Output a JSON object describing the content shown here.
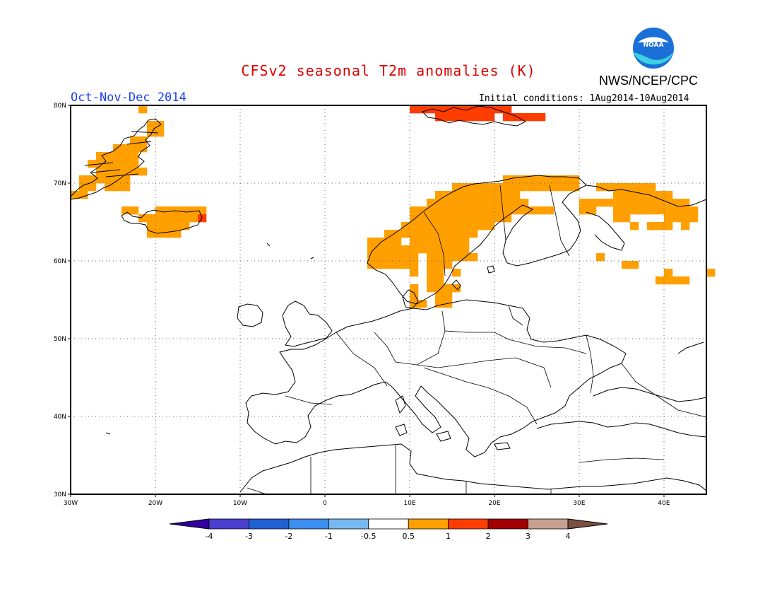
{
  "title": "CFSv2 seasonal T2m anomalies (K)",
  "organization": "NWS/NCEP/CPC",
  "logo": {
    "name": "noaa-logo",
    "text": "NOAA",
    "colors": {
      "sky": "#1a6fd8",
      "water": "#3fd0e0",
      "bird": "#ffffff"
    }
  },
  "season_label": "Oct-Nov-Dec 2014",
  "initial_conditions": "Initial conditions: 1Aug2014-10Aug2014",
  "map": {
    "projection": "lat-lon",
    "lon_range": [
      -30,
      45
    ],
    "lat_range": [
      30,
      80
    ],
    "grid": true,
    "lat_ticks": [
      "30N",
      "40N",
      "50N",
      "60N",
      "70N",
      "80N"
    ],
    "lon_ticks": [
      "30W",
      "20W",
      "10W",
      "0",
      "10E",
      "20E",
      "30E",
      "40E"
    ],
    "cell_size_deg": 1,
    "anomaly_regions": [
      {
        "region": "Svalbard",
        "bin": "1 to 2",
        "color": "#ff3d00",
        "cells": [
          [
            10,
            79
          ],
          [
            11,
            79
          ],
          [
            12,
            79
          ],
          [
            13,
            79
          ],
          [
            14,
            79
          ],
          [
            15,
            79
          ],
          [
            16,
            79
          ],
          [
            17,
            79
          ],
          [
            18,
            79
          ],
          [
            19,
            79
          ],
          [
            20,
            79
          ],
          [
            21,
            79
          ],
          [
            13,
            78
          ],
          [
            14,
            78
          ],
          [
            15,
            78
          ],
          [
            16,
            78
          ],
          [
            17,
            78
          ],
          [
            18,
            78
          ],
          [
            19,
            78
          ],
          [
            21,
            78
          ],
          [
            22,
            78
          ],
          [
            23,
            78
          ],
          [
            24,
            78
          ],
          [
            25,
            78
          ]
        ]
      },
      {
        "region": "Greenland east coast",
        "bin": "0.5 to 1",
        "color": "#ffa000",
        "cells": [
          [
            -22,
            79
          ],
          [
            -21,
            77
          ],
          [
            -20,
            77
          ],
          [
            -21,
            76
          ],
          [
            -20,
            76
          ],
          [
            -23,
            75
          ],
          [
            -22,
            75
          ],
          [
            -25,
            74
          ],
          [
            -24,
            74
          ],
          [
            -23,
            74
          ],
          [
            -22,
            74
          ],
          [
            -27,
            73
          ],
          [
            -26,
            73
          ],
          [
            -25,
            73
          ],
          [
            -24,
            73
          ],
          [
            -23,
            73
          ],
          [
            -28,
            72
          ],
          [
            -27,
            72
          ],
          [
            -26,
            72
          ],
          [
            -25,
            72
          ],
          [
            -24,
            72
          ],
          [
            -23,
            72
          ],
          [
            -27,
            71
          ],
          [
            -26,
            71
          ],
          [
            -25,
            71
          ],
          [
            -24,
            71
          ],
          [
            -23,
            71
          ],
          [
            -22,
            71
          ],
          [
            -29,
            70
          ],
          [
            -28,
            70
          ],
          [
            -27,
            70
          ],
          [
            -26,
            70
          ],
          [
            -25,
            70
          ],
          [
            -24,
            70
          ],
          [
            -29,
            69
          ],
          [
            -28,
            69
          ],
          [
            -26,
            69
          ],
          [
            -25,
            69
          ],
          [
            -24,
            69
          ],
          [
            -30,
            68
          ],
          [
            -29,
            68
          ]
        ]
      },
      {
        "region": "Iceland",
        "bin": "0.5 to 1",
        "color": "#ffa000",
        "cells": [
          [
            -24,
            66
          ],
          [
            -23,
            66
          ],
          [
            -20,
            66
          ],
          [
            -19,
            66
          ],
          [
            -18,
            66
          ],
          [
            -17,
            66
          ],
          [
            -16,
            66
          ],
          [
            -15,
            66
          ],
          [
            -22,
            65
          ],
          [
            -21,
            65
          ],
          [
            -20,
            65
          ],
          [
            -19,
            65
          ],
          [
            -18,
            65
          ],
          [
            -17,
            65
          ],
          [
            -16,
            65
          ],
          [
            -21,
            64
          ],
          [
            -20,
            64
          ],
          [
            -19,
            64
          ],
          [
            -18,
            64
          ],
          [
            -17,
            64
          ],
          [
            -21,
            63
          ],
          [
            -20,
            63
          ],
          [
            -19,
            63
          ],
          [
            -18,
            63
          ]
        ]
      },
      {
        "region": "Iceland south-east",
        "bin": "1 to 2",
        "color": "#ff3d00",
        "cells": [
          [
            -15,
            65
          ]
        ]
      },
      {
        "region": "Scandinavia",
        "bin": "0.5 to 1",
        "color": "#ffa000",
        "cells": [
          [
            21,
            70
          ],
          [
            22,
            70
          ],
          [
            23,
            70
          ],
          [
            24,
            70
          ],
          [
            25,
            70
          ],
          [
            26,
            70
          ],
          [
            27,
            70
          ],
          [
            28,
            70
          ],
          [
            29,
            70
          ],
          [
            15,
            69
          ],
          [
            16,
            69
          ],
          [
            17,
            69
          ],
          [
            18,
            69
          ],
          [
            19,
            69
          ],
          [
            20,
            69
          ],
          [
            21,
            69
          ],
          [
            22,
            69
          ],
          [
            23,
            69
          ],
          [
            24,
            69
          ],
          [
            25,
            69
          ],
          [
            26,
            69
          ],
          [
            27,
            69
          ],
          [
            28,
            69
          ],
          [
            29,
            69
          ],
          [
            13,
            68
          ],
          [
            14,
            68
          ],
          [
            15,
            68
          ],
          [
            16,
            68
          ],
          [
            17,
            68
          ],
          [
            18,
            68
          ],
          [
            19,
            68
          ],
          [
            20,
            68
          ],
          [
            21,
            68
          ],
          [
            22,
            68
          ],
          [
            12,
            67
          ],
          [
            13,
            67
          ],
          [
            14,
            67
          ],
          [
            15,
            67
          ],
          [
            16,
            67
          ],
          [
            17,
            67
          ],
          [
            18,
            67
          ],
          [
            19,
            67
          ],
          [
            20,
            67
          ],
          [
            21,
            67
          ],
          [
            22,
            67
          ],
          [
            23,
            67
          ],
          [
            10,
            66
          ],
          [
            11,
            66
          ],
          [
            12,
            66
          ],
          [
            13,
            66
          ],
          [
            14,
            66
          ],
          [
            15,
            66
          ],
          [
            16,
            66
          ],
          [
            17,
            66
          ],
          [
            18,
            66
          ],
          [
            19,
            66
          ],
          [
            20,
            66
          ],
          [
            21,
            66
          ],
          [
            22,
            66
          ],
          [
            23,
            66
          ],
          [
            24,
            66
          ],
          [
            25,
            66
          ],
          [
            26,
            66
          ],
          [
            10,
            65
          ],
          [
            11,
            65
          ],
          [
            12,
            65
          ],
          [
            13,
            65
          ],
          [
            14,
            65
          ],
          [
            15,
            65
          ],
          [
            16,
            65
          ],
          [
            17,
            65
          ],
          [
            18,
            65
          ],
          [
            19,
            65
          ],
          [
            20,
            65
          ],
          [
            21,
            65
          ],
          [
            9,
            64
          ],
          [
            10,
            64
          ],
          [
            11,
            64
          ],
          [
            12,
            64
          ],
          [
            13,
            64
          ],
          [
            14,
            64
          ],
          [
            15,
            64
          ],
          [
            16,
            64
          ],
          [
            17,
            64
          ],
          [
            18,
            64
          ],
          [
            19,
            64
          ],
          [
            7,
            63
          ],
          [
            8,
            63
          ],
          [
            9,
            63
          ],
          [
            10,
            63
          ],
          [
            11,
            63
          ],
          [
            12,
            63
          ],
          [
            13,
            63
          ],
          [
            14,
            63
          ],
          [
            15,
            63
          ],
          [
            16,
            63
          ],
          [
            17,
            63
          ],
          [
            5,
            62
          ],
          [
            6,
            62
          ],
          [
            7,
            62
          ],
          [
            8,
            62
          ],
          [
            10,
            62
          ],
          [
            11,
            62
          ],
          [
            12,
            62
          ],
          [
            13,
            62
          ],
          [
            14,
            62
          ],
          [
            15,
            62
          ],
          [
            16,
            62
          ],
          [
            5,
            61
          ],
          [
            6,
            61
          ],
          [
            7,
            61
          ],
          [
            8,
            61
          ],
          [
            9,
            61
          ],
          [
            10,
            61
          ],
          [
            11,
            61
          ],
          [
            12,
            61
          ],
          [
            13,
            61
          ],
          [
            14,
            61
          ],
          [
            15,
            61
          ],
          [
            16,
            61
          ],
          [
            5,
            60
          ],
          [
            6,
            60
          ],
          [
            7,
            60
          ],
          [
            8,
            60
          ],
          [
            9,
            60
          ],
          [
            10,
            60
          ],
          [
            12,
            60
          ],
          [
            13,
            60
          ],
          [
            14,
            60
          ],
          [
            15,
            60
          ],
          [
            16,
            60
          ],
          [
            17,
            60
          ],
          [
            5,
            59
          ],
          [
            6,
            59
          ],
          [
            7,
            59
          ],
          [
            8,
            59
          ],
          [
            9,
            59
          ],
          [
            10,
            59
          ],
          [
            12,
            59
          ],
          [
            13,
            59
          ],
          [
            14,
            59
          ],
          [
            10,
            58
          ],
          [
            12,
            58
          ],
          [
            13,
            58
          ],
          [
            15,
            58
          ],
          [
            12,
            57
          ],
          [
            13,
            57
          ],
          [
            10,
            56
          ],
          [
            12,
            56
          ],
          [
            13,
            56
          ],
          [
            14,
            56
          ],
          [
            15,
            56
          ],
          [
            10,
            55
          ],
          [
            13,
            55
          ],
          [
            14,
            55
          ],
          [
            10,
            54
          ],
          [
            11,
            54
          ],
          [
            13,
            54
          ],
          [
            14,
            54
          ]
        ]
      },
      {
        "region": "NW Russia",
        "bin": "0.5 to 1",
        "color": "#ffa000",
        "cells": [
          [
            32,
            69
          ],
          [
            33,
            69
          ],
          [
            34,
            69
          ],
          [
            35,
            69
          ],
          [
            36,
            69
          ],
          [
            37,
            69
          ],
          [
            38,
            69
          ],
          [
            39,
            68
          ],
          [
            40,
            68
          ],
          [
            36,
            68
          ],
          [
            37,
            68
          ],
          [
            38,
            68
          ],
          [
            39,
            68
          ],
          [
            34,
            68
          ],
          [
            35,
            68
          ],
          [
            30,
            67
          ],
          [
            31,
            67
          ],
          [
            32,
            67
          ],
          [
            33,
            67
          ],
          [
            34,
            67
          ],
          [
            35,
            67
          ],
          [
            36,
            67
          ],
          [
            37,
            67
          ],
          [
            38,
            67
          ],
          [
            39,
            67
          ],
          [
            40,
            67
          ],
          [
            41,
            67
          ],
          [
            42,
            67
          ],
          [
            30,
            66
          ],
          [
            31,
            66
          ],
          [
            34,
            66
          ],
          [
            35,
            66
          ],
          [
            36,
            66
          ],
          [
            37,
            66
          ],
          [
            38,
            66
          ],
          [
            39,
            66
          ],
          [
            40,
            66
          ],
          [
            41,
            66
          ],
          [
            42,
            66
          ],
          [
            43,
            66
          ],
          [
            34,
            65
          ],
          [
            35,
            65
          ],
          [
            40,
            65
          ],
          [
            41,
            65
          ],
          [
            42,
            65
          ],
          [
            43,
            65
          ],
          [
            36,
            64
          ],
          [
            38,
            64
          ],
          [
            39,
            64
          ],
          [
            40,
            64
          ],
          [
            42,
            64
          ],
          [
            32,
            60
          ],
          [
            35,
            59
          ],
          [
            36,
            59
          ],
          [
            40,
            58
          ],
          [
            39,
            57
          ],
          [
            40,
            57
          ],
          [
            41,
            57
          ],
          [
            42,
            57
          ],
          [
            45,
            58
          ]
        ]
      }
    ]
  },
  "colorbar": {
    "bins": [
      {
        "label": "< -4",
        "color": "#3000a0"
      },
      {
        "label": "-4 to -3",
        "color": "#4a3fd0"
      },
      {
        "label": "-3 to -2",
        "color": "#2060d0"
      },
      {
        "label": "-2 to -1",
        "color": "#3c8ef0"
      },
      {
        "label": "-1 to -0.5",
        "color": "#78b8f0"
      },
      {
        "label": "-0.5 to 0.5",
        "color": "#ffffff"
      },
      {
        "label": "0.5 to 1",
        "color": "#ffa000"
      },
      {
        "label": "1 to 2",
        "color": "#ff3d00"
      },
      {
        "label": "2 to 3",
        "color": "#a00000"
      },
      {
        "label": "3 to 4",
        "color": "#c8a090"
      },
      {
        "label": "> 4",
        "color": "#7a5040"
      }
    ],
    "tick_labels": [
      "-4",
      "-3",
      "-2",
      "-1",
      "-0.5",
      "0.5",
      "1",
      "2",
      "3",
      "4"
    ]
  }
}
